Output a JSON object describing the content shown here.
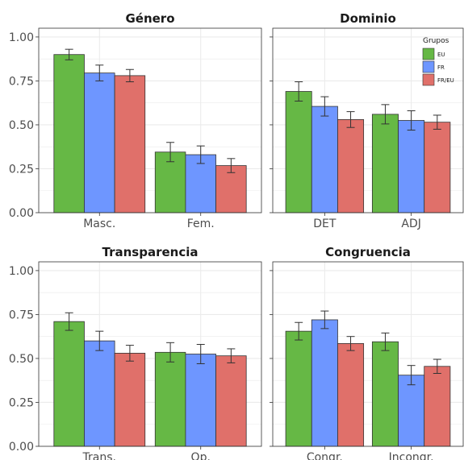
{
  "chart_data": [
    {
      "type": "bar",
      "title": "Género",
      "categories": [
        "Masc.",
        "Fem."
      ],
      "ylim": [
        0,
        1.05
      ],
      "yticks": [
        "0.00",
        "0.25",
        "0.50",
        "0.75",
        "1.00"
      ],
      "series": [
        {
          "name": "EU",
          "values": [
            0.9,
            0.345
          ],
          "errors": [
            0.03,
            0.055
          ]
        },
        {
          "name": "FR",
          "values": [
            0.795,
            0.33
          ],
          "errors": [
            0.045,
            0.05
          ]
        },
        {
          "name": "FR/EU",
          "values": [
            0.78,
            0.268
          ],
          "errors": [
            0.035,
            0.04
          ]
        }
      ]
    },
    {
      "type": "bar",
      "title": "Dominio",
      "categories": [
        "DET",
        "ADJ"
      ],
      "ylim": [
        0,
        1.05
      ],
      "yticks": [
        "0.00",
        "0.25",
        "0.50",
        "0.75",
        "1.00"
      ],
      "series": [
        {
          "name": "EU",
          "values": [
            0.69,
            0.56
          ],
          "errors": [
            0.055,
            0.055
          ]
        },
        {
          "name": "FR",
          "values": [
            0.605,
            0.525
          ],
          "errors": [
            0.055,
            0.055
          ]
        },
        {
          "name": "FR/EU",
          "values": [
            0.53,
            0.515
          ],
          "errors": [
            0.045,
            0.04
          ]
        }
      ]
    },
    {
      "type": "bar",
      "title": "Transparencia",
      "categories": [
        "Trans.",
        "Op."
      ],
      "ylim": [
        0,
        1.05
      ],
      "yticks": [
        "0.00",
        "0.25",
        "0.50",
        "0.75",
        "1.00"
      ],
      "series": [
        {
          "name": "EU",
          "values": [
            0.71,
            0.535
          ],
          "errors": [
            0.05,
            0.055
          ]
        },
        {
          "name": "FR",
          "values": [
            0.6,
            0.525
          ],
          "errors": [
            0.055,
            0.055
          ]
        },
        {
          "name": "FR/EU",
          "values": [
            0.53,
            0.515
          ],
          "errors": [
            0.045,
            0.04
          ]
        }
      ]
    },
    {
      "type": "bar",
      "title": "Congruencia",
      "categories": [
        "Congr.",
        "Incongr."
      ],
      "ylim": [
        0,
        1.05
      ],
      "yticks": [
        "0.00",
        "0.25",
        "0.50",
        "0.75",
        "1.00"
      ],
      "series": [
        {
          "name": "EU",
          "values": [
            0.655,
            0.595
          ],
          "errors": [
            0.05,
            0.05
          ]
        },
        {
          "name": "FR",
          "values": [
            0.72,
            0.405
          ],
          "errors": [
            0.05,
            0.055
          ]
        },
        {
          "name": "FR/EU",
          "values": [
            0.585,
            0.455
          ],
          "errors": [
            0.04,
            0.04
          ]
        }
      ]
    }
  ],
  "legend": {
    "title": "Grupos",
    "placement": "top-right of Dominio panel",
    "entries": [
      "EU",
      "FR",
      "FR/EU"
    ]
  },
  "colors": {
    "EU": "#66b845",
    "FR": "#6e96ff",
    "FR/EU": "#e0706a",
    "grid": "#ebebeb",
    "panel_border": "#333333"
  }
}
